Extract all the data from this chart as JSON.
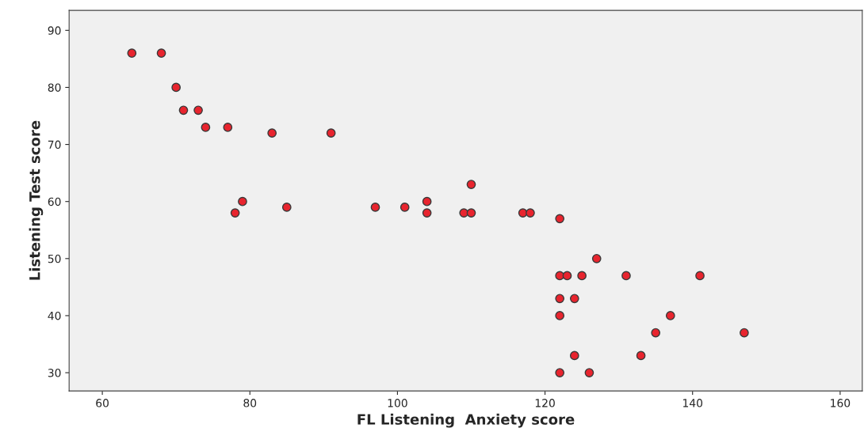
{
  "chart_data": {
    "type": "scatter",
    "xlabel": "FL Listening  Anxiety score",
    "ylabel": "Listening Test score",
    "series": [
      {
        "color": "#e8242e",
        "x": [
          64,
          68,
          70,
          71,
          73,
          74,
          77,
          83,
          91,
          79,
          78,
          85,
          97,
          101,
          104,
          104,
          109,
          110,
          110,
          117,
          118,
          122,
          127,
          122,
          123,
          125,
          131,
          141,
          122,
          124,
          122,
          137,
          135,
          147,
          124,
          133,
          122,
          126
        ],
        "values": [
          86,
          86,
          80,
          76,
          76,
          73,
          73,
          72,
          72,
          60,
          58,
          59,
          59,
          59,
          60,
          58,
          58,
          58,
          63,
          58,
          58,
          57,
          50,
          47,
          47,
          47,
          47,
          47,
          43,
          43,
          40,
          40,
          37,
          37,
          33,
          33,
          30,
          30
        ]
      }
    ],
    "xlim": [
      55.5,
      163
    ],
    "ylim": [
      26.8,
      93.5
    ],
    "xticks": [
      60,
      80,
      100,
      120,
      140,
      160
    ],
    "yticks": [
      30,
      40,
      50,
      60,
      70,
      80,
      90
    ],
    "marker": "circle",
    "grid": false,
    "legend": false
  }
}
